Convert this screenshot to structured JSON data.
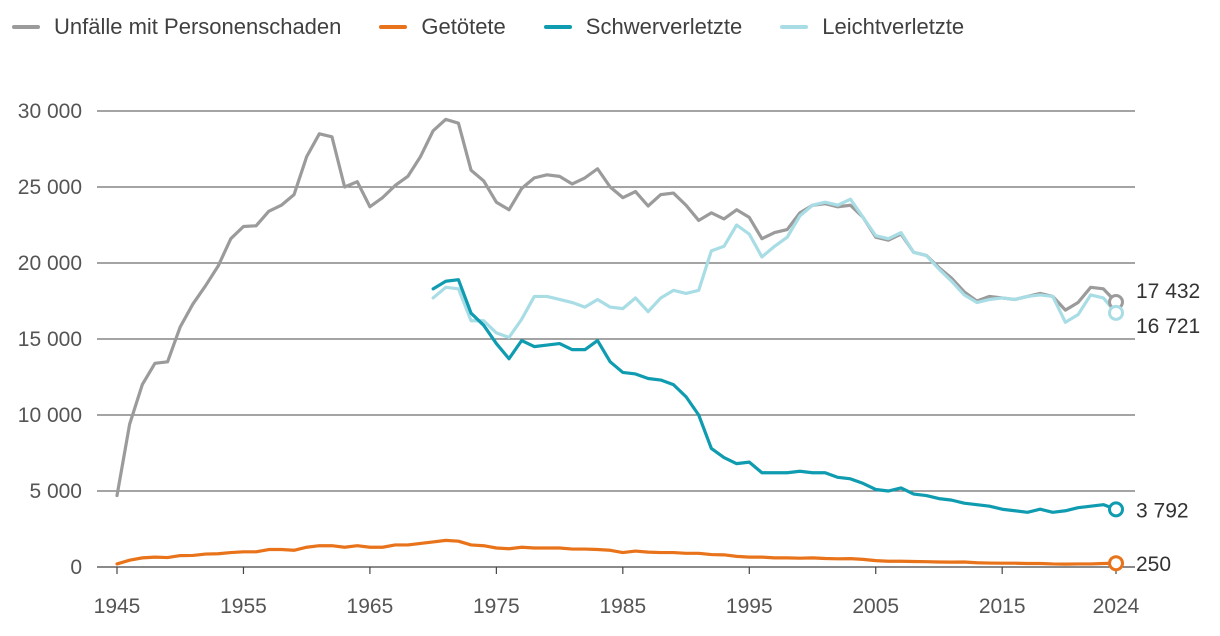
{
  "chart_data": {
    "type": "line",
    "title": "",
    "xlabel": "",
    "ylabel": "",
    "xlim": [
      1945,
      2024
    ],
    "ylim": [
      0,
      30000
    ],
    "x_ticks": [
      1945,
      1955,
      1965,
      1975,
      1985,
      1995,
      2005,
      2015,
      2024
    ],
    "x_tick_labels": [
      "1945",
      "1955",
      "1965",
      "1975",
      "1985",
      "1995",
      "2005",
      "2015",
      "2024"
    ],
    "y_ticks": [
      0,
      5000,
      10000,
      15000,
      20000,
      25000,
      30000
    ],
    "y_tick_labels": [
      "0",
      "5 000",
      "10 000",
      "15 000",
      "20 000",
      "25 000",
      "30 000"
    ],
    "grid": true,
    "legend_position": "top",
    "series": [
      {
        "name": "Unfälle mit Personenschaden",
        "color": "#9b9b9b",
        "x_start": 1945,
        "values": [
          4700,
          9400,
          12000,
          13400,
          13500,
          15800,
          17300,
          18500,
          19800,
          21600,
          22400,
          22450,
          23400,
          23800,
          24500,
          27000,
          28500,
          28300,
          25000,
          25350,
          23700,
          24300,
          25100,
          25700,
          27000,
          28700,
          29450,
          29200,
          26100,
          25400,
          24000,
          23500,
          24900,
          25600,
          25800,
          25700,
          25200,
          25600,
          26200,
          25000,
          24300,
          24700,
          23750,
          24500,
          24600,
          23800,
          22800,
          23300,
          22900,
          23500,
          23000,
          21600,
          22000,
          22200,
          23300,
          23800,
          23900,
          23700,
          23800,
          23000,
          21700,
          21500,
          21900,
          20700,
          20500,
          19700,
          19000,
          18100,
          17500,
          17800,
          17700,
          17600,
          17800,
          18000,
          17800,
          16900,
          17400,
          18400,
          18300,
          17432
        ],
        "end_label": "17 432"
      },
      {
        "name": "Getötete",
        "color": "#e8731a",
        "x_start": 1945,
        "values": [
          200,
          450,
          600,
          650,
          620,
          750,
          760,
          850,
          870,
          950,
          1000,
          1000,
          1150,
          1150,
          1100,
          1300,
          1400,
          1400,
          1300,
          1400,
          1300,
          1300,
          1450,
          1450,
          1550,
          1650,
          1750,
          1700,
          1450,
          1400,
          1250,
          1200,
          1300,
          1250,
          1250,
          1250,
          1180,
          1180,
          1150,
          1100,
          950,
          1050,
          980,
          950,
          950,
          900,
          900,
          820,
          800,
          700,
          650,
          650,
          600,
          600,
          580,
          600,
          560,
          540,
          550,
          500,
          420,
          380,
          380,
          360,
          350,
          330,
          320,
          330,
          280,
          260,
          250,
          250,
          230,
          230,
          200,
          190,
          200,
          200,
          230,
          250
        ],
        "end_label": "250"
      },
      {
        "name": "Schwerverletzte",
        "color": "#0f9bb0",
        "x_start": 1970,
        "values": [
          18300,
          18800,
          18900,
          16700,
          15900,
          14700,
          13700,
          14900,
          14500,
          14600,
          14700,
          14300,
          14300,
          14900,
          13500,
          12800,
          12700,
          12400,
          12300,
          12000,
          11200,
          10000,
          7800,
          7200,
          6800,
          6900,
          6200,
          6200,
          6200,
          6300,
          6200,
          6200,
          5900,
          5800,
          5500,
          5100,
          5000,
          5200,
          4800,
          4700,
          4500,
          4400,
          4200,
          4100,
          4000,
          3800,
          3700,
          3600,
          3800,
          3600,
          3700,
          3900,
          4000,
          4100,
          3792
        ],
        "end_label": "3 792"
      },
      {
        "name": "Leichtverletzte",
        "color": "#a8dde6",
        "x_start": 1970,
        "values": [
          17700,
          18400,
          18300,
          16200,
          16200,
          15400,
          15100,
          16300,
          17800,
          17800,
          17600,
          17400,
          17100,
          17600,
          17100,
          17000,
          17700,
          16800,
          17700,
          18200,
          18000,
          18200,
          20800,
          21100,
          22500,
          21900,
          20400,
          21100,
          21700,
          23100,
          23800,
          24000,
          23800,
          24200,
          23000,
          21800,
          21600,
          22000,
          20700,
          20500,
          19600,
          18800,
          17900,
          17400,
          17600,
          17700,
          17600,
          17800,
          17900,
          17800,
          16100,
          16600,
          17900,
          17700,
          16721
        ],
        "end_label": "16 721"
      }
    ]
  }
}
